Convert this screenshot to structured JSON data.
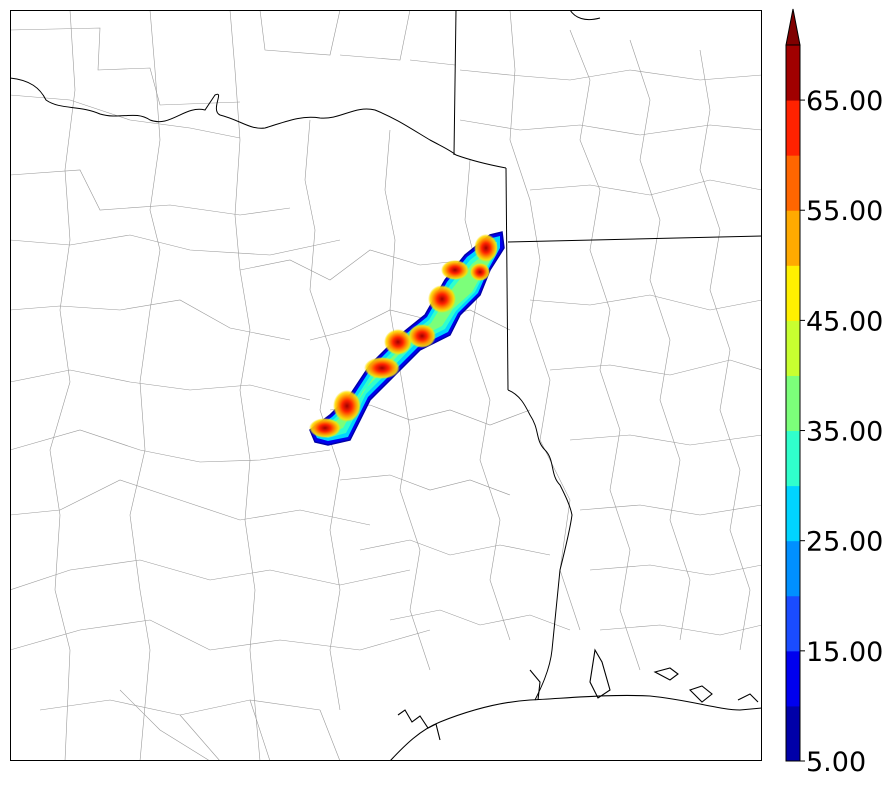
{
  "colorbar": {
    "tick_labels": [
      "5.00",
      "15.00",
      "25.00",
      "35.00",
      "45.00",
      "55.00",
      "65.00"
    ],
    "ticks": [
      5,
      15,
      25,
      35,
      45,
      55,
      65
    ],
    "range": [
      5,
      70
    ],
    "extend": "max",
    "levels": [
      {
        "from": 5,
        "to": 10,
        "color": "#0000a8"
      },
      {
        "from": 10,
        "to": 15,
        "color": "#0000ee"
      },
      {
        "from": 15,
        "to": 20,
        "color": "#1a4cff"
      },
      {
        "from": 20,
        "to": 25,
        "color": "#0090ff"
      },
      {
        "from": 25,
        "to": 30,
        "color": "#00d4ff"
      },
      {
        "from": 30,
        "to": 35,
        "color": "#30ffcc"
      },
      {
        "from": 35,
        "to": 40,
        "color": "#7cff7a"
      },
      {
        "from": 40,
        "to": 45,
        "color": "#c8ff30"
      },
      {
        "from": 45,
        "to": 50,
        "color": "#fff000"
      },
      {
        "from": 50,
        "to": 55,
        "color": "#ffaa00"
      },
      {
        "from": 55,
        "to": 60,
        "color": "#ff6600"
      },
      {
        "from": 60,
        "to": 65,
        "color": "#ff2200"
      },
      {
        "from": 65,
        "to": 70,
        "color": "#a00000"
      }
    ],
    "extend_color": "#800000"
  },
  "map": {
    "field": "gridded intensity swath",
    "colormap": "jet",
    "basemap": [
      "state boundaries",
      "county boundaries",
      "coastline"
    ]
  }
}
